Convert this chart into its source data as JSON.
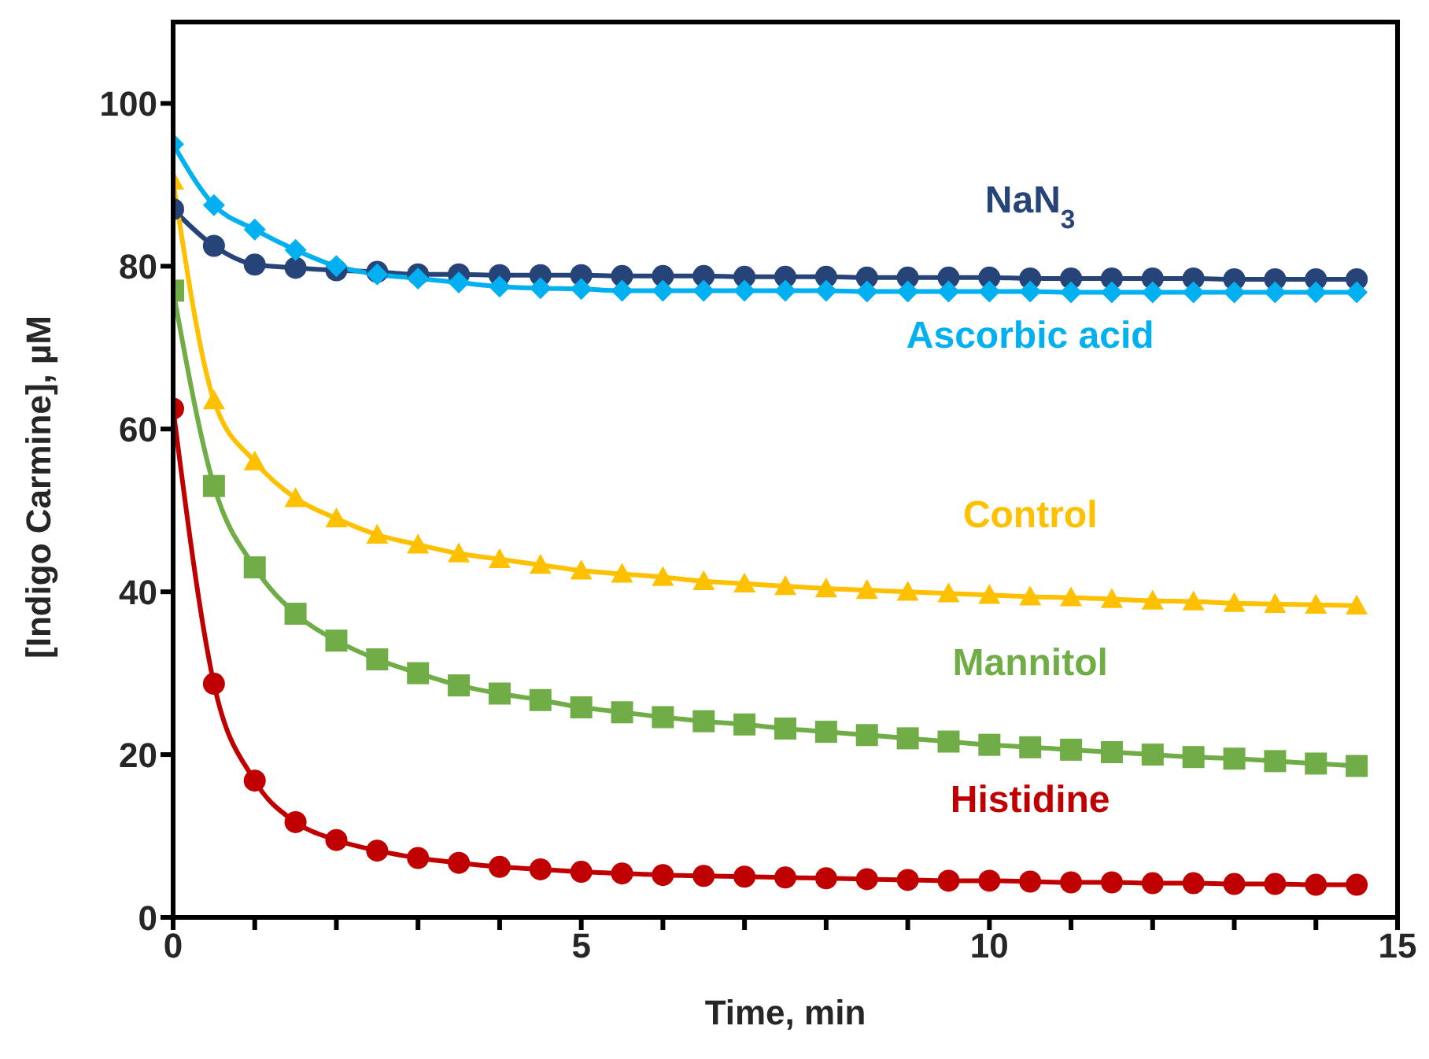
{
  "chart_data": {
    "type": "line",
    "xlabel": "Time, min",
    "ylabel": "[Indigo Carmine], µM",
    "x": [
      0,
      0.5,
      1,
      1.5,
      2,
      2.5,
      3,
      3.5,
      4,
      4.5,
      5,
      5.5,
      6,
      6.5,
      7,
      7.5,
      8,
      8.5,
      9,
      9.5,
      10,
      10.5,
      11,
      11.5,
      12,
      12.5,
      13,
      13.5,
      14,
      14.5
    ],
    "series": [
      {
        "name": "NaN$_{3}$",
        "color": "#264478",
        "marker": "circle",
        "values": [
          87,
          82.5,
          80.2,
          79.8,
          79.5,
          79.3,
          79,
          79,
          78.9,
          78.9,
          78.9,
          78.8,
          78.8,
          78.8,
          78.7,
          78.7,
          78.7,
          78.6,
          78.6,
          78.6,
          78.6,
          78.5,
          78.5,
          78.5,
          78.5,
          78.5,
          78.4,
          78.4,
          78.4,
          78.4
        ]
      },
      {
        "name": "Ascorbic acid",
        "color": "#00b0f0",
        "marker": "diamond",
        "values": [
          95,
          87.5,
          84.5,
          82,
          80,
          79,
          78.5,
          78,
          77.5,
          77.3,
          77.2,
          77,
          77,
          77,
          77,
          77,
          77,
          76.9,
          76.9,
          76.9,
          76.9,
          76.9,
          76.8,
          76.8,
          76.8,
          76.8,
          76.8,
          76.8,
          76.8,
          76.8
        ]
      },
      {
        "name": "Control",
        "color": "#ffc000",
        "marker": "triangle",
        "values": [
          90.5,
          63.5,
          56,
          51.5,
          49,
          47,
          45.8,
          44.7,
          44,
          43.3,
          42.6,
          42.2,
          41.8,
          41.3,
          41,
          40.7,
          40.4,
          40.2,
          40,
          39.8,
          39.6,
          39.4,
          39.3,
          39.1,
          38.9,
          38.8,
          38.6,
          38.5,
          38.4,
          38.3
        ]
      },
      {
        "name": "Mannitol",
        "color": "#70ad47",
        "marker": "square",
        "values": [
          77,
          53,
          43,
          37.3,
          34,
          31.7,
          30,
          28.5,
          27.5,
          26.7,
          25.8,
          25.2,
          24.6,
          24.1,
          23.7,
          23.2,
          22.8,
          22.4,
          22,
          21.6,
          21.2,
          20.9,
          20.6,
          20.3,
          20,
          19.7,
          19.5,
          19.2,
          18.9,
          18.6
        ]
      },
      {
        "name": "Histidine",
        "color": "#c00000",
        "marker": "circle",
        "values": [
          62.5,
          28.7,
          16.8,
          11.7,
          9.5,
          8.2,
          7.3,
          6.7,
          6.2,
          5.9,
          5.6,
          5.4,
          5.2,
          5.1,
          5,
          4.9,
          4.8,
          4.7,
          4.6,
          4.5,
          4.5,
          4.4,
          4.3,
          4.3,
          4.2,
          4.2,
          4.1,
          4.1,
          4,
          4
        ]
      }
    ],
    "xlim": [
      0,
      15
    ],
    "xticks": [
      0,
      {
        "value": 1,
        "label": null
      },
      {
        "value": 2,
        "label": null
      },
      {
        "value": 3,
        "label": null
      },
      {
        "value": 4,
        "label": null
      },
      5,
      {
        "value": 6,
        "label": null
      },
      {
        "value": 7,
        "label": null
      },
      {
        "value": 8,
        "label": null
      },
      {
        "value": 9,
        "label": null
      },
      10,
      {
        "value": 11,
        "label": null
      },
      {
        "value": 12,
        "label": null
      },
      {
        "value": 13,
        "label": null
      },
      {
        "value": 14,
        "label": null
      },
      15
    ],
    "ylim": [
      0,
      110
    ],
    "yticks": [
      0,
      20,
      40,
      60,
      80,
      100
    ],
    "line_style": "solid"
  }
}
